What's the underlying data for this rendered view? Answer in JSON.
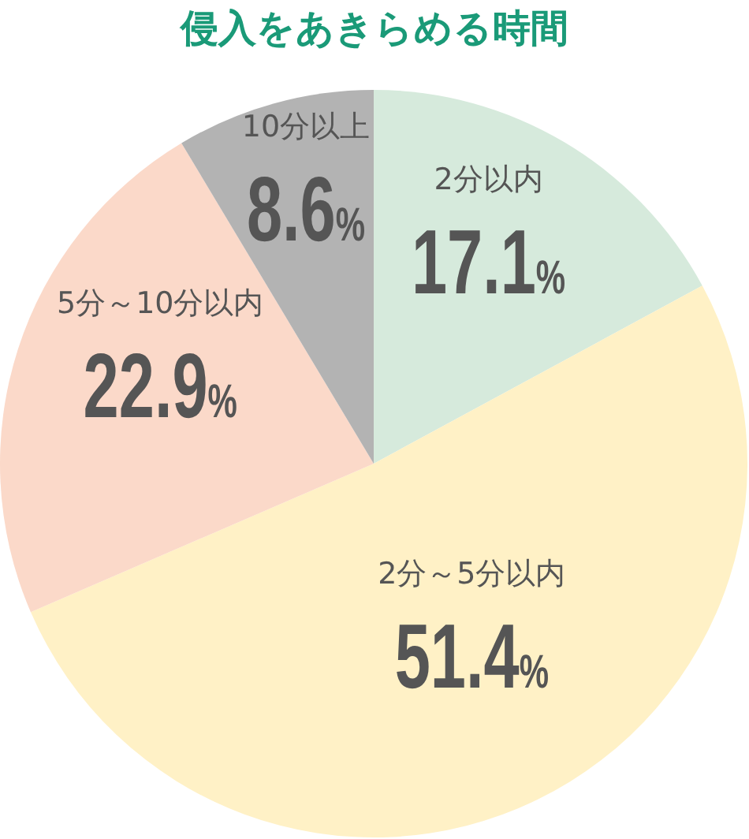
{
  "chart_data": {
    "type": "pie",
    "title": "侵入をあきらめる時間",
    "categories": [
      "2分以内",
      "2分～5分以内",
      "5分～10分以内",
      "10分以上"
    ],
    "values": [
      17.1,
      51.4,
      22.9,
      8.6
    ],
    "value_labels": [
      "17.1%",
      "51.4%",
      "22.9%",
      "8.6%"
    ],
    "colors": [
      "#d6eadc",
      "#fff1c6",
      "#fbd9c9",
      "#b3b3b3"
    ]
  }
}
